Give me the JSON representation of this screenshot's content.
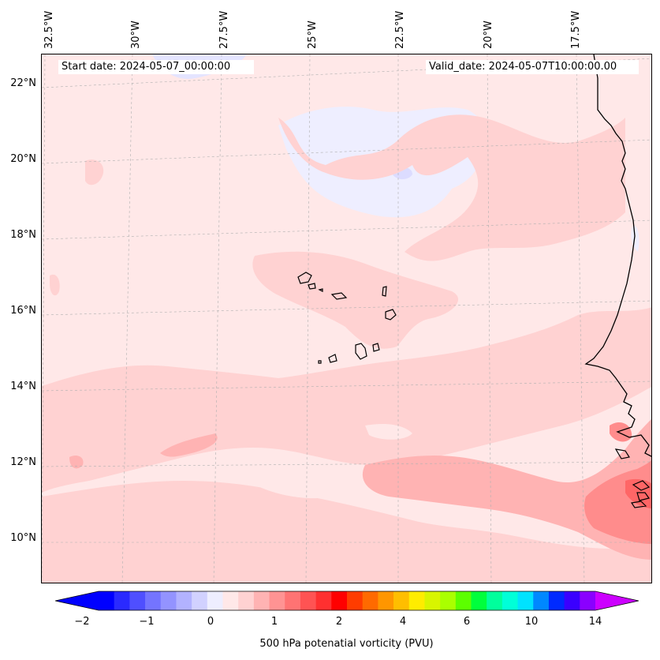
{
  "map": {
    "start_date": "Start date: 2024-05-07_00:00:00",
    "valid_date": "Valid_date: 2024-05-07T10:00:00.00",
    "lon_labels": [
      "32.5°W",
      "30°W",
      "27.5°W",
      "25°W",
      "22.5°W",
      "20°W",
      "17.5°W"
    ],
    "lat_labels": [
      "22°N",
      "20°N",
      "18°N",
      "16°N",
      "14°N",
      "12°N",
      "10°N"
    ],
    "field": "500 hPa potenatial vorticity",
    "unit": "PVU",
    "colors": {
      "background_level": "#ffe8e8",
      "light_pink": "#ffd2d2",
      "mid_pink": "#ffb3b3",
      "salmon": "#ff8c8c",
      "red": "#ff6666",
      "light_blue": "#eeeeff",
      "coast": "#000000"
    }
  },
  "colorbar": {
    "label": "500 hPa potenatial vorticity (PVU)",
    "ticks": [
      "−2",
      "−1",
      "0",
      "1",
      "2",
      "4",
      "6",
      "10",
      "14"
    ],
    "colors": [
      "#0000ff",
      "#2a2aff",
      "#4f4fff",
      "#7474ff",
      "#9393ff",
      "#b2b2ff",
      "#d1d1ff",
      "#eeeeff",
      "#ffe8e8",
      "#ffd2d2",
      "#ffb3b3",
      "#ff9393",
      "#ff7373",
      "#ff5353",
      "#ff3030",
      "#ff0000",
      "#ff3c00",
      "#ff6a00",
      "#ff9600",
      "#ffbe00",
      "#ffec00",
      "#d8f500",
      "#aaff00",
      "#5cff00",
      "#00ff3c",
      "#00ff9c",
      "#00ffd8",
      "#00e2ff",
      "#0088ff",
      "#002aff",
      "#3a00ff",
      "#8a00ff"
    ],
    "under_color": "#0000ff",
    "over_color": "#cc00ff"
  }
}
